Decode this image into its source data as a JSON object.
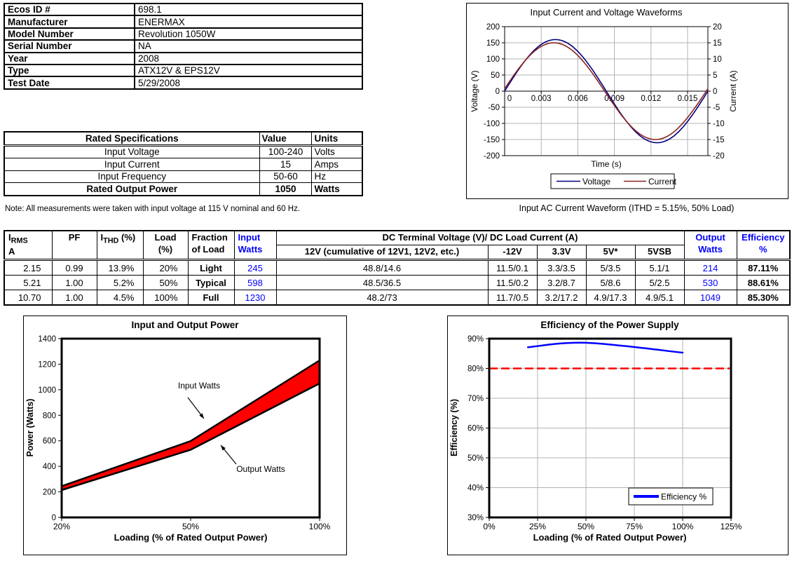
{
  "device_info": {
    "rows": [
      {
        "label": "Ecos ID #",
        "value": "698.1"
      },
      {
        "label": "Manufacturer",
        "value": "ENERMAX"
      },
      {
        "label": "Model Number",
        "value": "Revolution 1050W"
      },
      {
        "label": "Serial Number",
        "value": "NA"
      },
      {
        "label": "Year",
        "value": "2008"
      },
      {
        "label": "Type",
        "value": "ATX12V & EPS12V"
      },
      {
        "label": "Test Date",
        "value": "5/29/2008"
      }
    ]
  },
  "rated_specs": {
    "headers": {
      "name": "Rated Specifications",
      "value": "Value",
      "units": "Units"
    },
    "rows": [
      {
        "name": "Input Voltage",
        "value": "100-240",
        "units": "Volts"
      },
      {
        "name": "Input Current",
        "value": "15",
        "units": "Amps"
      },
      {
        "name": "Input Frequency",
        "value": "50-60",
        "units": "Hz"
      }
    ],
    "final_row": {
      "name": "Rated Output Power",
      "value": "1050",
      "units": "Watts"
    },
    "note": "Note: All measurements were taken with input voltage at 115 V nominal and 60 Hz."
  },
  "load_table": {
    "header": {
      "irms_prefix": "I",
      "irms_sub": "RMS",
      "irms_line2": "A",
      "pf": "PF",
      "ithd_prefix": "I",
      "ithd_sub": "THD",
      "ithd_suffix": " (%)",
      "load_line1": "Load",
      "load_line2": "(%)",
      "fraction_line1": "Fraction",
      "fraction_line2": "of Load",
      "input_line1": "Input",
      "input_line2": "Watts",
      "group": "DC Terminal Voltage (V)/ DC Load Current (A)",
      "v12": "12V (cumulative of 12V1, 12V2, etc.)",
      "vneg12": "-12V",
      "v33": "3.3V",
      "v5": "5V*",
      "v5sb": "5VSB",
      "output_line1": "Output",
      "output_line2": "Watts",
      "eff_line1": "Efficiency",
      "eff_line2": "%"
    },
    "rows": [
      [
        "2.15",
        "0.99",
        "13.9%",
        "20%",
        "Light",
        "245",
        "48.8/14.6",
        "11.5/0.1",
        "3.3/3.5",
        "5/3.5",
        "5.1/1",
        "214",
        "87.11%"
      ],
      [
        "5.21",
        "1.00",
        "5.2%",
        "50%",
        "Typical",
        "598",
        "48.5/36.5",
        "11.5/0.2",
        "3.2/8.7",
        "5/8.6",
        "5/2.5",
        "530",
        "88.61%"
      ],
      [
        "10.70",
        "1.00",
        "4.5%",
        "100%",
        "Full",
        "1230",
        "48.2/73",
        "11.7/0.5",
        "3.2/17.2",
        "4.9/17.3",
        "4.9/5.1",
        "1049",
        "85.30%"
      ]
    ]
  },
  "charts": {
    "waveform": {
      "type": "line",
      "title": "Input Current and Voltage Waveforms",
      "xlabel": "Time (s)",
      "ylabel_left": "Voltage (V)",
      "ylabel_right": "Current (A)",
      "x_ticks": [
        {
          "v": 0,
          "label": "0"
        },
        {
          "v": 0.003,
          "label": "0.003"
        },
        {
          "v": 0.006,
          "label": "0.006"
        },
        {
          "v": 0.009,
          "label": "0.009"
        },
        {
          "v": 0.012,
          "label": "0.012"
        },
        {
          "v": 0.015,
          "label": "0.015"
        }
      ],
      "x_max": 0.016667,
      "left_axis": {
        "min": -200,
        "max": 200,
        "tick_step": 50
      },
      "right_axis": {
        "min": -20,
        "max": 20,
        "tick_step": 5
      },
      "frequency_hz": 60,
      "series": [
        {
          "name": "Voltage",
          "color": "#000080",
          "axis": "left",
          "amplitude": 160,
          "phase_rad": 0
        },
        {
          "name": "Current",
          "color": "#8B2323",
          "axis": "right",
          "amplitude": 15.0,
          "phase_rad": 0.05
        }
      ],
      "caption": "Input AC Current Waveform (ITHD = 5.15%, 50% Load)"
    },
    "power": {
      "type": "area",
      "title": "Input and Output Power",
      "xlabel": "Loading (% of Rated Output Power)",
      "ylabel": "Power (Watts)",
      "categories": [
        "20%",
        "50%",
        "100%"
      ],
      "series": [
        {
          "name": "Input Watts",
          "values": [
            245,
            598,
            1230
          ]
        },
        {
          "name": "Output Watts",
          "values": [
            214,
            530,
            1049
          ]
        }
      ],
      "ylim": [
        0,
        1400
      ],
      "y_tick_step": 200,
      "band_fill": "#FF0000",
      "band_stroke": "#000000"
    },
    "efficiency": {
      "type": "line",
      "title": "Efficiency of the Power Supply",
      "xlabel": "Loading (% of Rated Output Power)",
      "ylabel": "Efficiency (%)",
      "x_points": [
        20,
        50,
        100
      ],
      "y_points": [
        87.11,
        88.61,
        85.3
      ],
      "xlim": [
        0,
        125
      ],
      "x_tick_labels": [
        "0%",
        "25%",
        "50%",
        "75%",
        "100%",
        "125%"
      ],
      "ylim": [
        30,
        90
      ],
      "y_tick_labels": [
        "30%",
        "40%",
        "50%",
        "60%",
        "70%",
        "80%",
        "90%"
      ],
      "line_color": "#0000FF",
      "threshold": {
        "value": 80,
        "color": "#FF0000",
        "style": "dashed"
      },
      "legend_label": "Efficiency %"
    }
  }
}
